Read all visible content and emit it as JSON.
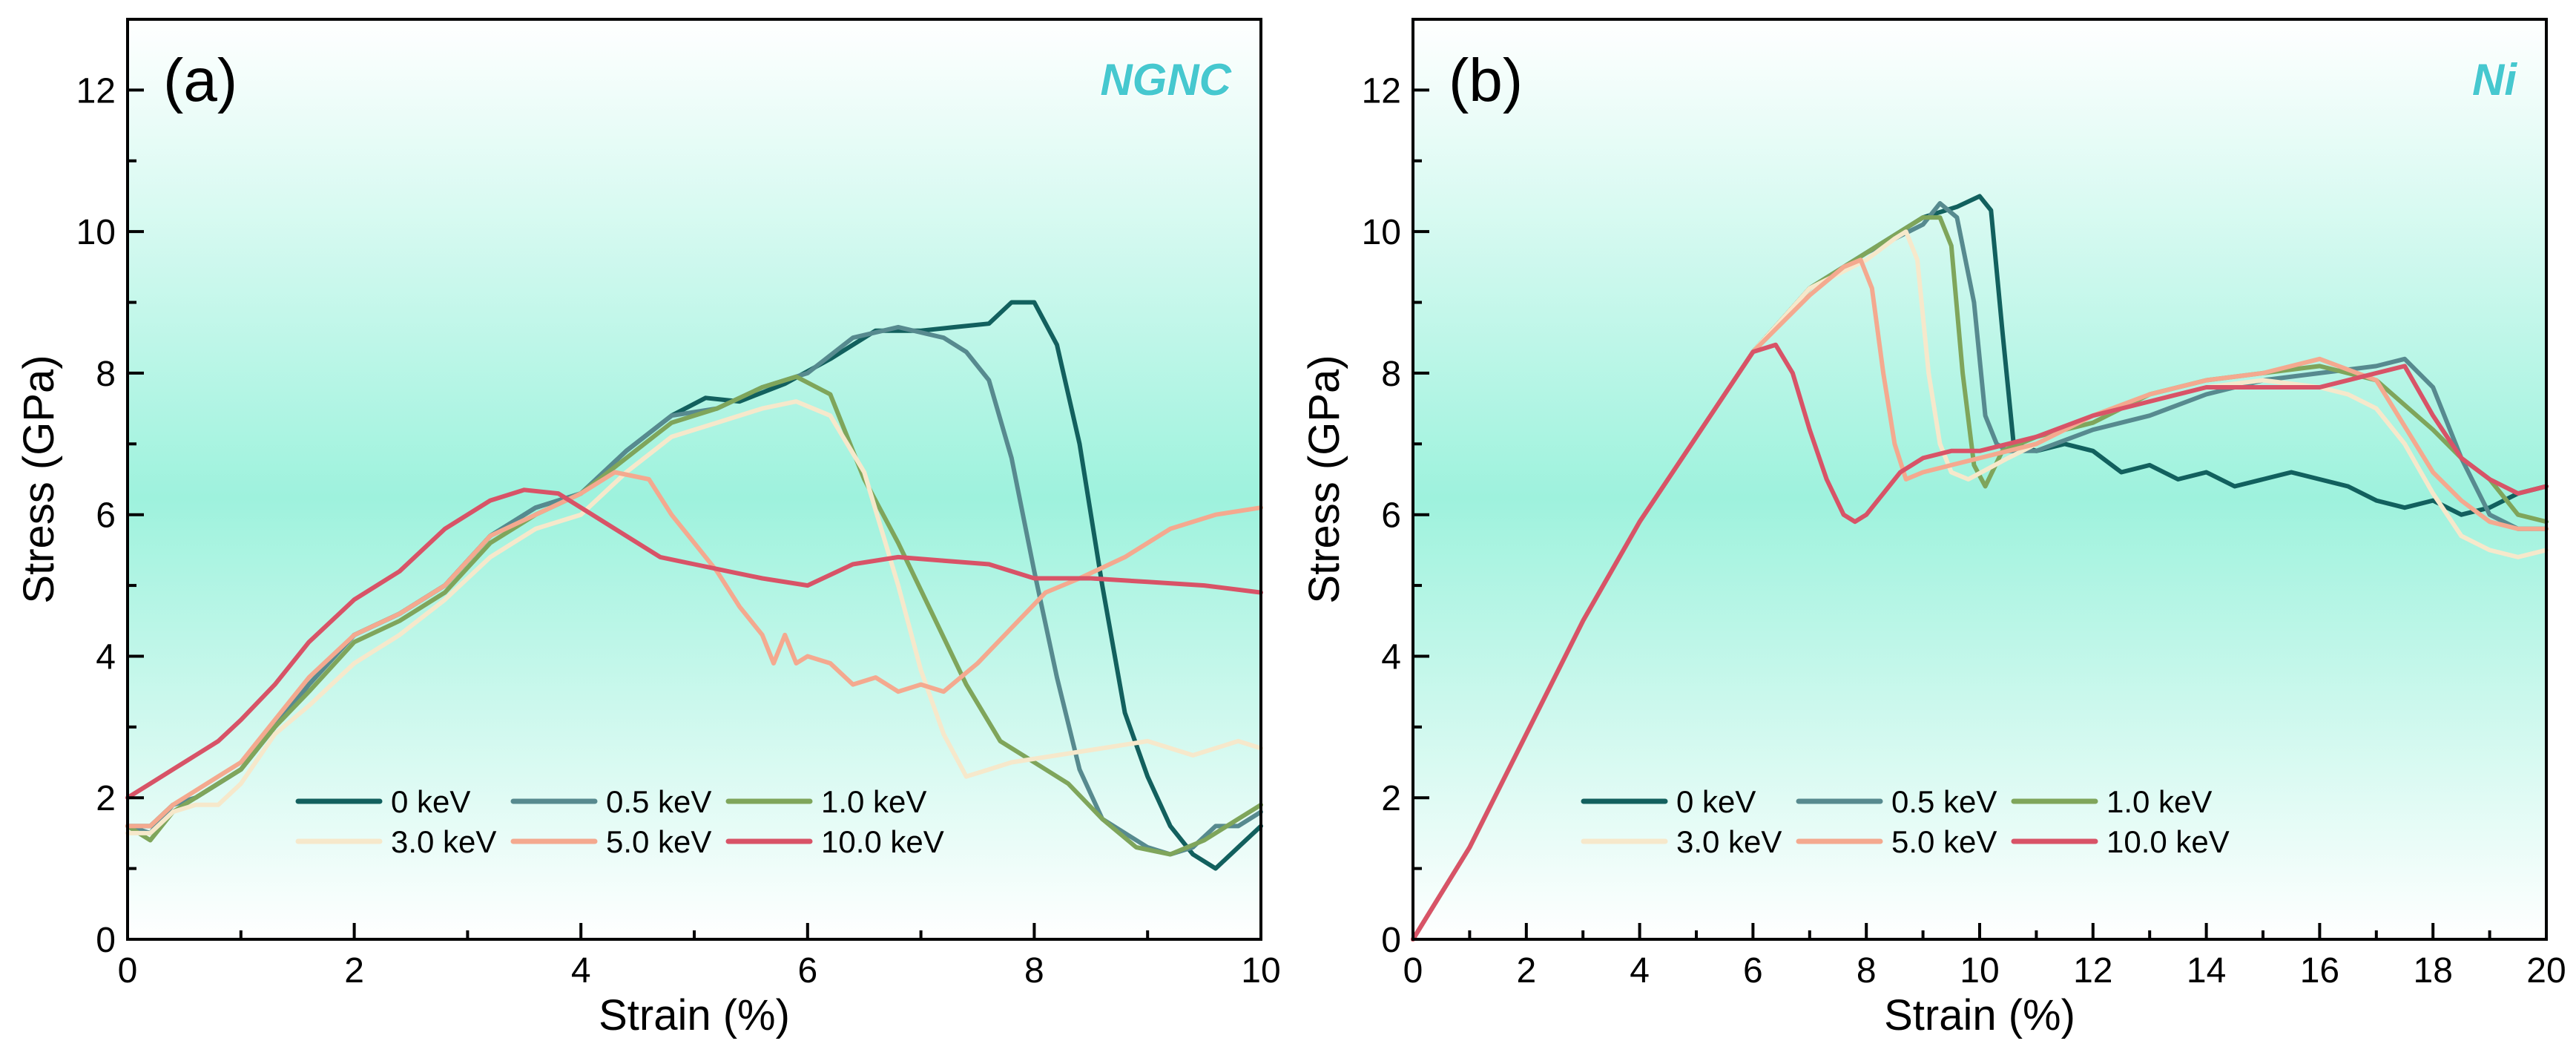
{
  "figure": {
    "colors": {
      "gradient": [
        "#ffffff",
        "#9ef2dd",
        "#ffffff"
      ],
      "frame": "#000000"
    }
  },
  "chart_data": [
    {
      "type": "line",
      "panel_label": "(a)",
      "title": "NGNC",
      "title_color": "#46c8cf",
      "xlabel": "Strain (%)",
      "ylabel": "Stress (GPa)",
      "xlim": [
        0,
        10
      ],
      "ylim": [
        0,
        13
      ],
      "xticks": [
        0,
        2,
        4,
        6,
        8,
        10
      ],
      "yticks": [
        0,
        2,
        4,
        6,
        8,
        10,
        12
      ],
      "legend": {
        "position": "bottom-center",
        "columns": 3
      },
      "series": [
        {
          "name": "0 keV",
          "color": "#12605e",
          "x": [
            0,
            0.2,
            0.4,
            0.6,
            0.8,
            1.0,
            1.3,
            1.6,
            2.0,
            2.4,
            2.8,
            3.2,
            3.6,
            4.0,
            4.4,
            4.8,
            5.1,
            5.4,
            5.8,
            6.2,
            6.6,
            7.0,
            7.3,
            7.6,
            7.8,
            8.0,
            8.2,
            8.4,
            8.6,
            8.8,
            9.0,
            9.2,
            9.4,
            9.6,
            9.8,
            10.0
          ],
          "y": [
            1.6,
            1.6,
            1.9,
            2.0,
            2.2,
            2.4,
            3.0,
            3.6,
            4.3,
            4.6,
            5.0,
            5.7,
            6.1,
            6.3,
            6.9,
            7.4,
            7.65,
            7.6,
            7.85,
            8.2,
            8.6,
            8.6,
            8.65,
            8.7,
            9.0,
            9.0,
            8.4,
            7.0,
            5.0,
            3.2,
            2.3,
            1.6,
            1.2,
            1.0,
            1.3,
            1.6
          ]
        },
        {
          "name": "0.5 keV",
          "color": "#578a8f",
          "x": [
            0,
            0.2,
            0.4,
            0.6,
            0.8,
            1.0,
            1.3,
            1.6,
            2.0,
            2.4,
            2.8,
            3.2,
            3.6,
            4.0,
            4.4,
            4.8,
            5.2,
            5.6,
            6.0,
            6.4,
            6.8,
            7.2,
            7.4,
            7.6,
            7.8,
            8.0,
            8.2,
            8.4,
            8.6,
            8.8,
            9.0,
            9.2,
            9.4,
            9.6,
            9.8,
            10.0
          ],
          "y": [
            1.6,
            1.5,
            1.9,
            2.0,
            2.2,
            2.4,
            3.0,
            3.6,
            4.3,
            4.6,
            5.0,
            5.7,
            6.1,
            6.3,
            6.9,
            7.4,
            7.5,
            7.8,
            8.0,
            8.5,
            8.65,
            8.5,
            8.3,
            7.9,
            6.8,
            5.2,
            3.7,
            2.4,
            1.7,
            1.5,
            1.3,
            1.2,
            1.3,
            1.6,
            1.6,
            1.8
          ]
        },
        {
          "name": "1.0 keV",
          "color": "#7fa55b",
          "x": [
            0,
            0.2,
            0.4,
            0.6,
            0.8,
            1.0,
            1.3,
            1.6,
            2.0,
            2.4,
            2.8,
            3.2,
            3.6,
            4.0,
            4.4,
            4.8,
            5.2,
            5.6,
            5.9,
            6.2,
            6.5,
            6.8,
            7.1,
            7.4,
            7.7,
            8.0,
            8.3,
            8.6,
            8.9,
            9.2,
            9.5,
            9.8,
            10.0
          ],
          "y": [
            1.6,
            1.4,
            1.8,
            2.0,
            2.2,
            2.4,
            3.0,
            3.5,
            4.2,
            4.5,
            4.9,
            5.6,
            6.0,
            6.3,
            6.8,
            7.3,
            7.5,
            7.8,
            7.95,
            7.7,
            6.5,
            5.6,
            4.6,
            3.6,
            2.8,
            2.5,
            2.2,
            1.7,
            1.3,
            1.2,
            1.4,
            1.7,
            1.9
          ]
        },
        {
          "name": "3.0 keV",
          "color": "#f6e8cb",
          "x": [
            0,
            0.2,
            0.4,
            0.6,
            0.8,
            1.0,
            1.3,
            1.6,
            2.0,
            2.4,
            2.8,
            3.2,
            3.6,
            4.0,
            4.4,
            4.8,
            5.2,
            5.6,
            5.9,
            6.2,
            6.5,
            6.8,
            7.0,
            7.2,
            7.4,
            7.6,
            7.8,
            8.2,
            8.6,
            9.0,
            9.4,
            9.8,
            10.0
          ],
          "y": [
            1.5,
            1.5,
            1.8,
            1.9,
            1.9,
            2.2,
            2.9,
            3.3,
            3.9,
            4.3,
            4.8,
            5.4,
            5.8,
            6.0,
            6.6,
            7.1,
            7.3,
            7.5,
            7.6,
            7.4,
            6.6,
            5.0,
            3.8,
            2.9,
            2.3,
            2.4,
            2.5,
            2.6,
            2.7,
            2.8,
            2.6,
            2.8,
            2.7
          ]
        },
        {
          "name": "5.0 keV",
          "color": "#f4a98f",
          "x": [
            0,
            0.2,
            0.4,
            0.6,
            0.8,
            1.0,
            1.3,
            1.6,
            2.0,
            2.4,
            2.8,
            3.2,
            3.6,
            4.0,
            4.3,
            4.6,
            4.8,
            5.0,
            5.2,
            5.4,
            5.6,
            5.7,
            5.8,
            5.9,
            6.0,
            6.2,
            6.4,
            6.6,
            6.8,
            7.0,
            7.2,
            7.5,
            7.8,
            8.1,
            8.4,
            8.8,
            9.2,
            9.6,
            10.0
          ],
          "y": [
            1.6,
            1.6,
            1.9,
            2.1,
            2.3,
            2.5,
            3.1,
            3.7,
            4.3,
            4.6,
            5.0,
            5.7,
            6.0,
            6.3,
            6.6,
            6.5,
            6.0,
            5.6,
            5.2,
            4.7,
            4.3,
            3.9,
            4.3,
            3.9,
            4.0,
            3.9,
            3.6,
            3.7,
            3.5,
            3.6,
            3.5,
            3.9,
            4.4,
            4.9,
            5.1,
            5.4,
            5.8,
            6.0,
            6.1
          ]
        },
        {
          "name": "10.0 keV",
          "color": "#d85367",
          "x": [
            0,
            0.2,
            0.4,
            0.6,
            0.8,
            1.0,
            1.3,
            1.6,
            2.0,
            2.4,
            2.8,
            3.2,
            3.5,
            3.8,
            4.1,
            4.4,
            4.7,
            5.0,
            5.3,
            5.6,
            6.0,
            6.4,
            6.8,
            7.2,
            7.6,
            8.0,
            8.5,
            9.0,
            9.5,
            10.0
          ],
          "y": [
            2.0,
            2.2,
            2.4,
            2.6,
            2.8,
            3.1,
            3.6,
            4.2,
            4.8,
            5.2,
            5.8,
            6.2,
            6.35,
            6.3,
            6.0,
            5.7,
            5.4,
            5.3,
            5.2,
            5.1,
            5.0,
            5.3,
            5.4,
            5.35,
            5.3,
            5.1,
            5.1,
            5.05,
            5.0,
            4.9
          ]
        }
      ]
    },
    {
      "type": "line",
      "panel_label": "(b)",
      "title": "Ni",
      "title_color": "#46c8cf",
      "xlabel": "Strain (%)",
      "ylabel": "Stress (GPa)",
      "xlim": [
        0,
        20
      ],
      "ylim": [
        0,
        13
      ],
      "xticks": [
        0,
        2,
        4,
        6,
        8,
        10,
        12,
        14,
        16,
        18,
        20
      ],
      "yticks": [
        0,
        2,
        4,
        6,
        8,
        10,
        12
      ],
      "legend": {
        "position": "bottom-center",
        "columns": 3
      },
      "series": [
        {
          "name": "0 keV",
          "color": "#12605e",
          "x": [
            0,
            1,
            2,
            3,
            4,
            5,
            6,
            7,
            8,
            9,
            9.6,
            10.0,
            10.2,
            10.4,
            10.6,
            11.0,
            11.5,
            12.0,
            12.5,
            13.0,
            13.5,
            14.0,
            14.5,
            15.0,
            15.5,
            16.0,
            16.5,
            17.0,
            17.5,
            18.0,
            18.5,
            19.0,
            19.5,
            20.0
          ],
          "y": [
            0,
            1.3,
            2.9,
            4.5,
            5.9,
            7.1,
            8.3,
            9.2,
            9.7,
            10.2,
            10.35,
            10.5,
            10.3,
            8.6,
            7.0,
            6.9,
            7.0,
            6.9,
            6.6,
            6.7,
            6.5,
            6.6,
            6.4,
            6.5,
            6.6,
            6.5,
            6.4,
            6.2,
            6.1,
            6.2,
            6.0,
            6.1,
            6.3,
            6.4
          ]
        },
        {
          "name": "0.5 keV",
          "color": "#578a8f",
          "x": [
            0,
            1,
            2,
            3,
            4,
            5,
            6,
            7,
            8,
            9,
            9.3,
            9.6,
            9.9,
            10.1,
            10.3,
            10.5,
            11,
            12,
            13,
            14,
            15,
            16,
            17,
            17.5,
            18,
            18.5,
            19,
            19.5,
            20
          ],
          "y": [
            0,
            1.3,
            2.9,
            4.5,
            5.9,
            7.1,
            8.3,
            9.2,
            9.7,
            10.1,
            10.4,
            10.2,
            9.0,
            7.4,
            7.0,
            6.9,
            6.9,
            7.2,
            7.4,
            7.7,
            7.9,
            8.0,
            8.1,
            8.2,
            7.8,
            6.8,
            6.0,
            5.8,
            5.8
          ]
        },
        {
          "name": "1.0 keV",
          "color": "#7fa55b",
          "x": [
            0,
            1,
            2,
            3,
            4,
            5,
            6,
            7,
            8,
            8.6,
            9.0,
            9.3,
            9.5,
            9.7,
            9.9,
            10.1,
            10.4,
            11,
            12,
            13,
            14,
            15,
            16,
            17,
            18,
            18.5,
            19,
            19.5,
            20
          ],
          "y": [
            0,
            1.3,
            2.9,
            4.5,
            5.9,
            7.1,
            8.3,
            9.2,
            9.7,
            10.0,
            10.2,
            10.2,
            9.8,
            8.0,
            6.7,
            6.4,
            6.9,
            7.1,
            7.3,
            7.7,
            7.9,
            8.0,
            8.1,
            7.9,
            7.2,
            6.8,
            6.5,
            6.0,
            5.9
          ]
        },
        {
          "name": "3.0 keV",
          "color": "#f6e8cb",
          "x": [
            0,
            1,
            2,
            3,
            4,
            5,
            6,
            7,
            8,
            8.5,
            8.7,
            8.9,
            9.1,
            9.3,
            9.5,
            9.8,
            10.5,
            11,
            12,
            13,
            14,
            15,
            16,
            16.5,
            17,
            17.5,
            18,
            18.5,
            19,
            19.5,
            20
          ],
          "y": [
            0,
            1.3,
            2.9,
            4.5,
            5.9,
            7.1,
            8.3,
            9.2,
            9.6,
            9.9,
            10.0,
            9.6,
            8.0,
            7.0,
            6.6,
            6.5,
            6.8,
            7.0,
            7.4,
            7.6,
            7.8,
            7.9,
            7.8,
            7.7,
            7.5,
            7.0,
            6.3,
            5.7,
            5.5,
            5.4,
            5.5
          ]
        },
        {
          "name": "5.0 keV",
          "color": "#f4a98f",
          "x": [
            0,
            1,
            2,
            3,
            4,
            5,
            6,
            7,
            7.6,
            7.9,
            8.1,
            8.3,
            8.5,
            8.7,
            9.0,
            9.5,
            10,
            11,
            12,
            13,
            14,
            15,
            16,
            17,
            18,
            18.5,
            19,
            19.5,
            20
          ],
          "y": [
            0,
            1.3,
            2.9,
            4.5,
            5.9,
            7.1,
            8.3,
            9.1,
            9.5,
            9.6,
            9.2,
            8.0,
            7.0,
            6.5,
            6.6,
            6.7,
            6.8,
            7.0,
            7.4,
            7.7,
            7.9,
            8.0,
            8.2,
            7.9,
            6.6,
            6.2,
            5.9,
            5.8,
            5.8
          ]
        },
        {
          "name": "10.0 keV",
          "color": "#d85367",
          "x": [
            0,
            1,
            2,
            3,
            4,
            5,
            6,
            6.4,
            6.7,
            7.0,
            7.3,
            7.6,
            7.8,
            8.0,
            8.3,
            8.6,
            9.0,
            9.5,
            10,
            11,
            12,
            13,
            14,
            15,
            16,
            17,
            17.5,
            18,
            18.5,
            19,
            19.5,
            20
          ],
          "y": [
            0,
            1.3,
            2.9,
            4.5,
            5.9,
            7.1,
            8.3,
            8.4,
            8.0,
            7.2,
            6.5,
            6.0,
            5.9,
            6.0,
            6.3,
            6.6,
            6.8,
            6.9,
            6.9,
            7.1,
            7.4,
            7.6,
            7.8,
            7.8,
            7.8,
            8.0,
            8.1,
            7.4,
            6.8,
            6.5,
            6.3,
            6.4
          ]
        }
      ]
    }
  ]
}
